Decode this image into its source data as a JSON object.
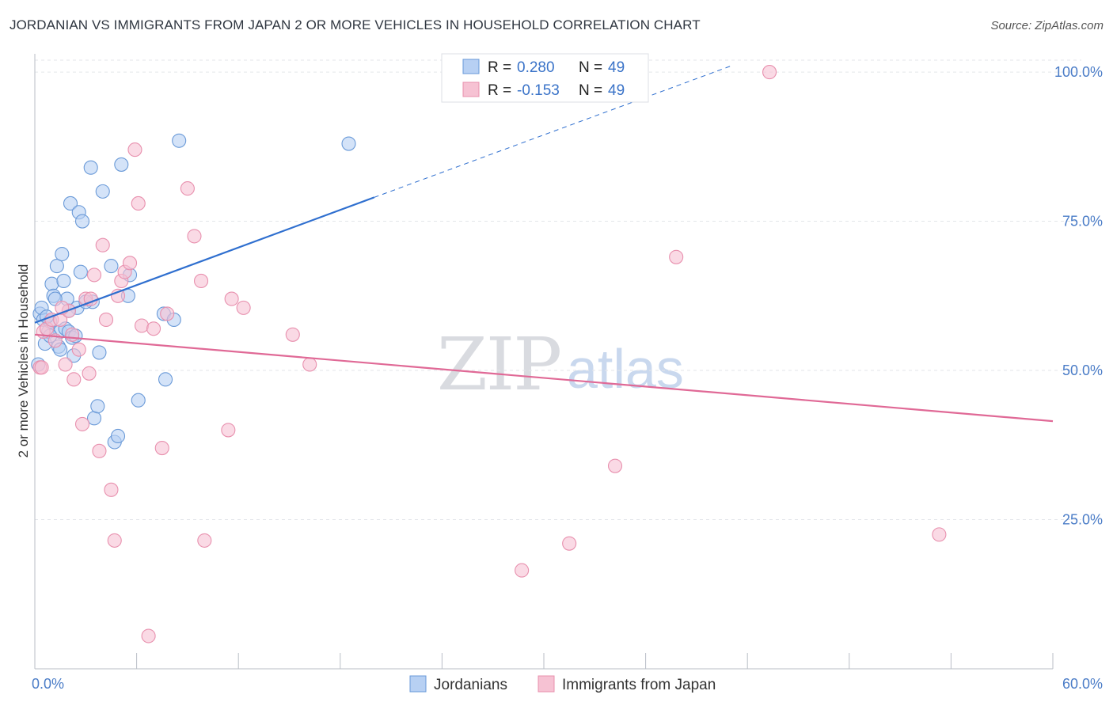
{
  "title": "JORDANIAN VS IMMIGRANTS FROM JAPAN 2 OR MORE VEHICLES IN HOUSEHOLD CORRELATION CHART",
  "source": "Source: ZipAtlas.com",
  "watermark": {
    "zip": "ZIP",
    "atlas": "atlas"
  },
  "colors": {
    "blue_fill": "#b7d0f3",
    "blue_stroke": "#6a9ad8",
    "blue_line": "#2f6fcf",
    "pink_fill": "#f6c2d3",
    "pink_stroke": "#e890ae",
    "pink_line": "#e06996",
    "grid": "#e3e6ea",
    "axis_text": "#4a7cc7"
  },
  "chart_data": {
    "type": "scatter",
    "ylabel": "2 or more Vehicles in Household",
    "xlim": [
      0,
      60
    ],
    "ylim": [
      0,
      102
    ],
    "x_tick_labels": [
      {
        "value": 0,
        "label": "0.0%"
      },
      {
        "value": 60,
        "label": "60.0%"
      }
    ],
    "x_minor_ticks": [
      0,
      6,
      12,
      18,
      24,
      30,
      36,
      42,
      48,
      54,
      60
    ],
    "y_ticks": [
      {
        "value": 25,
        "label": "25.0%"
      },
      {
        "value": 50,
        "label": "50.0%"
      },
      {
        "value": 75,
        "label": "75.0%"
      },
      {
        "value": 100,
        "label": "100.0%"
      }
    ],
    "legend_top": [
      {
        "r_label": "R =",
        "r_value": "0.280",
        "n_label": "N =",
        "n_value": "49",
        "series": "Jordanians"
      },
      {
        "r_label": "R =",
        "r_value": "-0.153",
        "n_label": "N =",
        "n_value": "49",
        "series": "Immigrants from Japan"
      }
    ],
    "series": [
      {
        "name": "Jordanians",
        "color": "blue",
        "trend": {
          "x0": 0,
          "y0": 58,
          "x1": 20,
          "y1": 79,
          "dash_x1": 41,
          "dash_y1": 101
        },
        "points": [
          [
            0.3,
            59.5
          ],
          [
            0.5,
            58.5
          ],
          [
            0.4,
            60.5
          ],
          [
            0.6,
            54.5
          ],
          [
            0.8,
            56.5
          ],
          [
            0.9,
            58.2
          ],
          [
            1.0,
            64.5
          ],
          [
            1.1,
            62.5
          ],
          [
            1.3,
            67.5
          ],
          [
            1.5,
            56.5
          ],
          [
            1.6,
            69.5
          ],
          [
            1.7,
            65.0
          ],
          [
            1.8,
            57.0
          ],
          [
            1.9,
            62.0
          ],
          [
            2.0,
            56.5
          ],
          [
            2.1,
            78.0
          ],
          [
            2.2,
            55.5
          ],
          [
            2.3,
            52.5
          ],
          [
            2.5,
            60.5
          ],
          [
            2.6,
            76.5
          ],
          [
            2.7,
            66.5
          ],
          [
            2.8,
            75.0
          ],
          [
            3.3,
            84.0
          ],
          [
            3.4,
            61.5
          ],
          [
            3.5,
            42.0
          ],
          [
            3.7,
            44.0
          ],
          [
            3.8,
            53.0
          ],
          [
            4.0,
            80.0
          ],
          [
            4.5,
            67.5
          ],
          [
            4.7,
            38.0
          ],
          [
            4.9,
            39.0
          ],
          [
            5.1,
            84.5
          ],
          [
            5.5,
            62.5
          ],
          [
            5.6,
            66.0
          ],
          [
            6.1,
            45.0
          ],
          [
            7.6,
            59.5
          ],
          [
            7.7,
            48.5
          ],
          [
            8.2,
            58.5
          ],
          [
            8.5,
            88.5
          ],
          [
            18.5,
            88.0
          ],
          [
            0.2,
            51.0
          ],
          [
            1.2,
            62.0
          ],
          [
            2.0,
            60.0
          ],
          [
            3.0,
            61.5
          ],
          [
            1.4,
            54.0
          ],
          [
            0.7,
            59.0
          ],
          [
            2.4,
            55.8
          ],
          [
            1.5,
            53.5
          ],
          [
            0.9,
            55.8
          ]
        ]
      },
      {
        "name": "Immigrants from Japan",
        "color": "pink",
        "trend": {
          "x0": 0,
          "y0": 56,
          "x1": 60,
          "y1": 41.5
        },
        "points": [
          [
            0.3,
            50.5
          ],
          [
            0.5,
            56.5
          ],
          [
            0.7,
            57.0
          ],
          [
            1.0,
            58.5
          ],
          [
            1.2,
            55.0
          ],
          [
            1.5,
            58.5
          ],
          [
            1.8,
            51.0
          ],
          [
            2.0,
            60.0
          ],
          [
            2.2,
            56.0
          ],
          [
            2.3,
            48.5
          ],
          [
            2.6,
            53.5
          ],
          [
            2.8,
            41.0
          ],
          [
            3.0,
            62.0
          ],
          [
            3.2,
            49.5
          ],
          [
            3.5,
            66.0
          ],
          [
            3.8,
            36.5
          ],
          [
            4.0,
            71.0
          ],
          [
            4.2,
            58.5
          ],
          [
            4.5,
            30.0
          ],
          [
            4.7,
            21.5
          ],
          [
            4.9,
            62.5
          ],
          [
            5.1,
            65.0
          ],
          [
            5.3,
            66.5
          ],
          [
            5.6,
            68.0
          ],
          [
            5.9,
            87.0
          ],
          [
            6.1,
            78.0
          ],
          [
            6.3,
            57.5
          ],
          [
            6.7,
            5.5
          ],
          [
            7.0,
            57.0
          ],
          [
            7.5,
            37.0
          ],
          [
            7.8,
            59.5
          ],
          [
            9.0,
            80.5
          ],
          [
            9.4,
            72.5
          ],
          [
            9.8,
            65.0
          ],
          [
            10.0,
            21.5
          ],
          [
            11.4,
            40.0
          ],
          [
            11.6,
            62.0
          ],
          [
            12.3,
            60.5
          ],
          [
            15.2,
            56.0
          ],
          [
            16.2,
            51.0
          ],
          [
            28.7,
            16.5
          ],
          [
            31.5,
            21.0
          ],
          [
            34.2,
            34.0
          ],
          [
            37.8,
            69.0
          ],
          [
            43.3,
            100.0
          ],
          [
            53.3,
            22.5
          ],
          [
            3.3,
            62.0
          ],
          [
            1.6,
            60.5
          ],
          [
            0.4,
            50.5
          ]
        ]
      }
    ],
    "bottom_legend": [
      {
        "label": "Jordanians",
        "color": "blue"
      },
      {
        "label": "Immigrants from Japan",
        "color": "pink"
      }
    ]
  }
}
